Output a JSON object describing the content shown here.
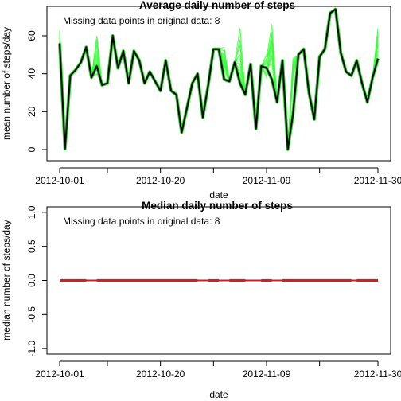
{
  "chart_data": [
    {
      "type": "line",
      "title": "Average daily number of steps",
      "annotation": "Missing data points in original data: 8",
      "xlabel": "date",
      "ylabel": "mean number of steps/day",
      "x_ticks": [
        "2012-10-01",
        "2012-10-20",
        "2012-11-09",
        "2012-11-30"
      ],
      "y_ticks": [
        0,
        20,
        40,
        60
      ],
      "ylim": [
        0,
        73
      ],
      "n_days": 61,
      "dates_start": "2012-10-01",
      "dates_end": "2012-11-30",
      "missing_days": [
        1,
        8,
        32,
        35,
        40,
        41,
        45,
        61
      ],
      "imputed_values": [
        [
          63,
          50,
          55,
          60,
          58,
          45,
          62,
          52,
          57,
          48
        ],
        [
          44,
          55,
          60,
          48,
          52,
          40,
          58,
          46,
          50,
          43
        ],
        [
          46,
          50,
          45,
          52,
          48,
          54,
          42,
          49,
          47,
          44
        ],
        [
          40,
          45,
          64,
          35,
          50,
          48,
          58,
          42,
          55,
          38
        ],
        [
          38,
          42,
          48,
          45,
          50,
          40,
          46,
          44,
          39,
          47
        ],
        [
          55,
          60,
          66,
          48,
          52,
          58,
          62,
          45,
          50,
          57
        ],
        [
          40,
          44,
          46,
          48,
          42,
          45,
          38,
          47,
          43,
          41
        ],
        [
          55,
          60,
          64,
          50,
          58,
          48,
          62,
          52,
          56,
          45
        ]
      ],
      "series": [
        {
          "name": "",
          "color": "#000000",
          "values": [
            56,
            0.4,
            39,
            42,
            46,
            54,
            38,
            44,
            34,
            35,
            60,
            43,
            52,
            35,
            52,
            47,
            35,
            41,
            36,
            31,
            47,
            31,
            29,
            9,
            22,
            35,
            40,
            17,
            34,
            53,
            53,
            37,
            36,
            46,
            35,
            29,
            45,
            11,
            44,
            43,
            37,
            25,
            47,
            0.1,
            19,
            50,
            53,
            30,
            16,
            49,
            53,
            72,
            74,
            51,
            41,
            39,
            47,
            35,
            25,
            38,
            48
          ]
        }
      ],
      "imputed_color": "#33ff33"
    },
    {
      "type": "line",
      "title": "Median daily number of steps",
      "annotation": "Missing data points in original data: 8",
      "xlabel": "date",
      "ylabel": "median number of steps/day",
      "x_ticks": [
        "2012-10-01",
        "2012-10-20",
        "2012-11-09",
        "2012-11-30"
      ],
      "y_ticks": [
        -1.0,
        -0.5,
        0.0,
        0.5,
        1.0
      ],
      "y_tick_labels": [
        "-1.0",
        "-0.5",
        "0.0",
        "0.5",
        "1.0"
      ],
      "ylim": [
        -1.08,
        1.08
      ],
      "n_days": 61,
      "series": [
        {
          "name": "",
          "color": "#cc2222",
          "value": 0
        }
      ]
    }
  ]
}
